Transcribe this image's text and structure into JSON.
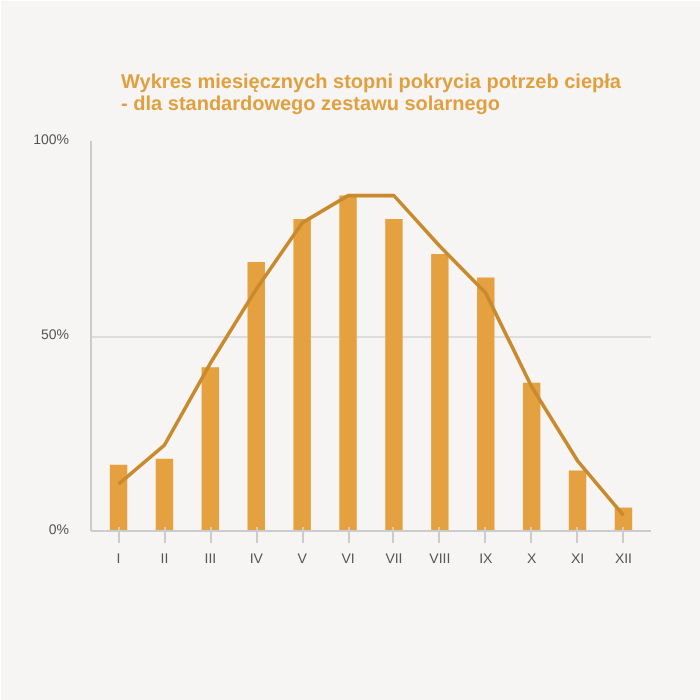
{
  "chart_data": {
    "type": "bar",
    "title": "Wykres miesięcznych stopni pokrycia potrzeb ciepła\n- dla standardowego zestawu solarnego",
    "categories": [
      "I",
      "II",
      "III",
      "IV",
      "V",
      "VI",
      "VII",
      "VIII",
      "IX",
      "X",
      "XI",
      "XII"
    ],
    "series": [
      {
        "color": "#e5a140",
        "values": [
          17,
          18.5,
          42,
          69,
          80,
          86,
          80,
          71,
          65,
          38,
          15.5,
          6
        ]
      },
      {
        "type": "line",
        "color": "#c98a2e",
        "values": [
          12,
          22,
          43,
          62,
          79,
          86,
          86,
          73,
          61,
          37,
          18,
          4
        ]
      }
    ],
    "ylim": [
      0,
      100
    ],
    "yticks": [
      {
        "value": 0,
        "label": "0%"
      },
      {
        "value": 50,
        "label": "50%"
      },
      {
        "value": 100,
        "label": "100%"
      }
    ],
    "grid": "y"
  }
}
